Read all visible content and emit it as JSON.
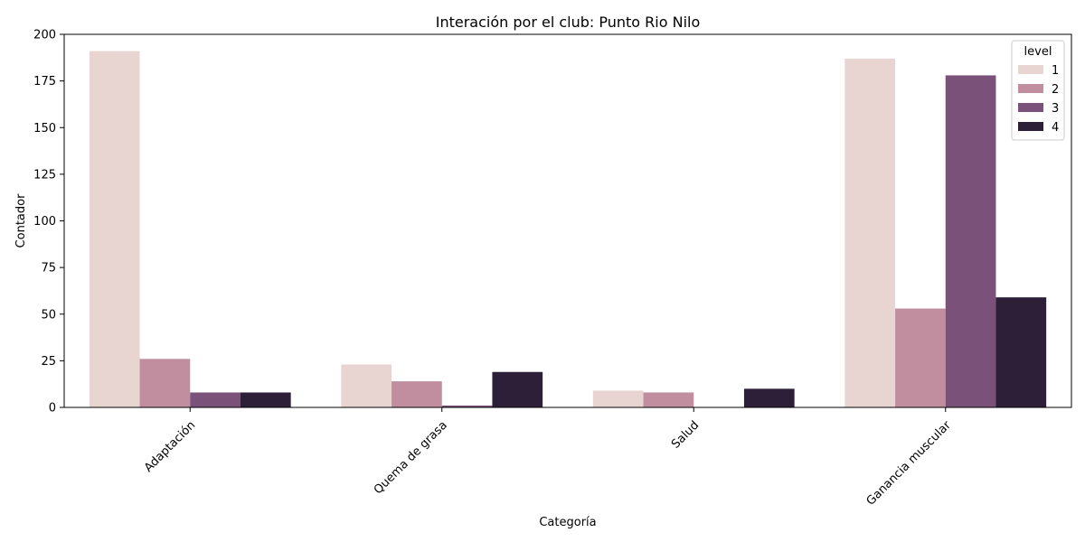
{
  "chart_data": {
    "type": "bar",
    "title": "Interación por el club: Punto Rio Nilo",
    "xlabel": "Categoría",
    "ylabel": "Contador",
    "categories": [
      "Adaptación",
      "Quema de grasa",
      "Salud",
      "Ganancia muscular"
    ],
    "ylim": [
      0,
      200
    ],
    "yticks": [
      0,
      25,
      50,
      75,
      100,
      125,
      150,
      175,
      200
    ],
    "legend": {
      "title": "level",
      "placement": "top-right"
    },
    "series": [
      {
        "name": "1",
        "color": "#e8d5d2",
        "values": [
          191,
          23,
          9,
          187
        ]
      },
      {
        "name": "2",
        "color": "#c08e9e",
        "values": [
          26,
          14,
          8,
          53
        ]
      },
      {
        "name": "3",
        "color": "#7a5178",
        "values": [
          8,
          1,
          0,
          178
        ]
      },
      {
        "name": "4",
        "color": "#2d1f38",
        "values": [
          8,
          19,
          10,
          59
        ]
      }
    ],
    "grid": false
  }
}
